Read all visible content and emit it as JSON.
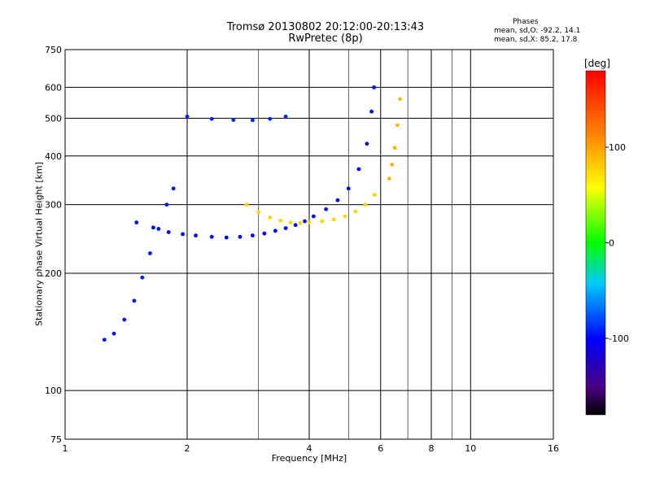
{
  "title": "Tromsø 20130802 20:12:00-20:13:43",
  "subtitle": "RwPretec (8p)",
  "stats": {
    "heading": "Phases",
    "o_mode": "mean, sd,O: -92.2, 14.1",
    "x_mode": "mean, sd,X:  85.2, 17.8"
  },
  "colorbar": {
    "unit": "[deg]",
    "ticks": [
      {
        "value": 100,
        "label": "100"
      },
      {
        "value": 0,
        "label": "0"
      },
      {
        "value": -100,
        "label": "-100"
      }
    ],
    "range": [
      -180,
      180
    ]
  },
  "chart_data": {
    "type": "scatter",
    "xlabel": "Frequency [MHz]",
    "ylabel": "Stationary phase Virtual Height [km]",
    "xscale": "log",
    "yscale": "log",
    "xlim": [
      1,
      16
    ],
    "ylim": [
      75,
      750
    ],
    "grid": true,
    "xticks_major": [
      {
        "value": 1,
        "label": "1"
      },
      {
        "value": 2,
        "label": "2"
      },
      {
        "value": 4,
        "label": "4"
      },
      {
        "value": 6,
        "label": "6"
      },
      {
        "value": 8,
        "label": "8"
      },
      {
        "value": 10,
        "label": "10"
      },
      {
        "value": 16,
        "label": "16"
      }
    ],
    "xticks_minor": [
      3,
      5,
      7,
      9
    ],
    "yticks": [
      {
        "value": 75,
        "label": "75"
      },
      {
        "value": 100,
        "label": "100"
      },
      {
        "value": 200,
        "label": "200"
      },
      {
        "value": 300,
        "label": "300"
      },
      {
        "value": 400,
        "label": "400"
      },
      {
        "value": 500,
        "label": "500"
      },
      {
        "value": 600,
        "label": "600"
      },
      {
        "value": 750,
        "label": "750"
      }
    ],
    "traces": [
      {
        "mode": "O",
        "phase": -100,
        "x": [
          1.5,
          1.65,
          1.8,
          1.95,
          2.1,
          2.3,
          2.5,
          2.7,
          2.9,
          3.1,
          3.3,
          3.5,
          3.7,
          3.9,
          4.1,
          4.4,
          4.7,
          5.0,
          5.3,
          5.55,
          5.7,
          5.78
        ],
        "y": [
          270,
          262,
          255,
          252,
          250,
          248,
          247,
          248,
          250,
          253,
          257,
          261,
          266,
          272,
          280,
          292,
          308,
          330,
          370,
          430,
          520,
          600
        ]
      },
      {
        "mode": "O",
        "phase": -95,
        "x": [
          1.25,
          1.32,
          1.4,
          1.48,
          1.55,
          1.62,
          1.7,
          1.78,
          1.85
        ],
        "y": [
          135,
          140,
          152,
          170,
          195,
          225,
          260,
          300,
          330
        ]
      },
      {
        "mode": "O",
        "phase": -90,
        "x": [
          2.0,
          2.3,
          2.6,
          2.9,
          3.2,
          3.5
        ],
        "y": [
          505,
          498,
          495,
          494,
          498,
          505
        ]
      },
      {
        "mode": "X",
        "phase": 80,
        "x": [
          2.8,
          3.0,
          3.2,
          3.4,
          3.6,
          3.8,
          4.0,
          4.3,
          4.6,
          4.9,
          5.2,
          5.5,
          5.8
        ],
        "y": [
          300,
          287,
          278,
          273,
          270,
          269,
          270,
          272,
          275,
          280,
          288,
          300,
          318
        ]
      },
      {
        "mode": "X",
        "phase": 95,
        "x": [
          6.3,
          6.4,
          6.5,
          6.6,
          6.7
        ],
        "y": [
          350,
          380,
          420,
          480,
          560
        ]
      }
    ]
  }
}
